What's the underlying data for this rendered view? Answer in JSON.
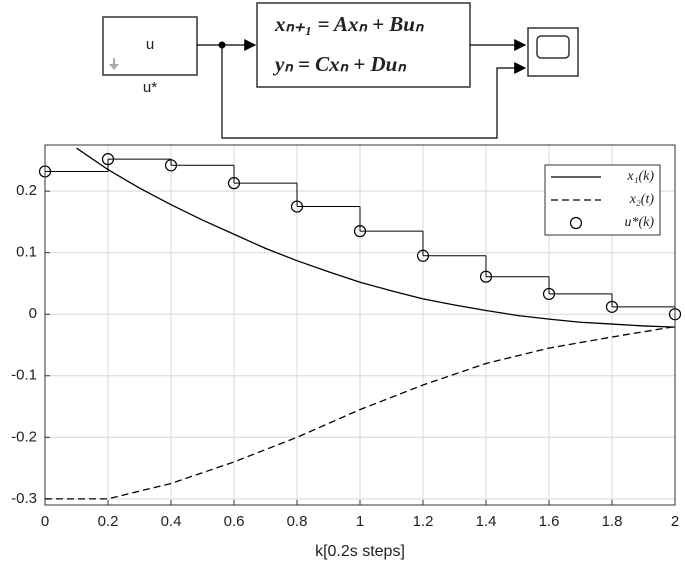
{
  "diagram": {
    "source_block": "u",
    "source_label": "u*",
    "equation_1": "xₙ₊₁ = Axₙ + Buₙ",
    "equation_2": "yₙ = Cxₙ + Duₙ"
  },
  "chart_data": {
    "type": "line",
    "xlabel": "k[0.2s steps]",
    "xlim": [
      0,
      2
    ],
    "ylim": [
      -0.31,
      0.275
    ],
    "xticks": [
      0,
      0.2,
      0.4,
      0.6,
      0.8,
      1,
      1.2,
      1.4,
      1.6,
      1.8,
      2
    ],
    "yticks": [
      -0.3,
      -0.2,
      -0.1,
      0,
      0.1,
      0.2
    ],
    "grid": true,
    "legend": "upper right",
    "series": [
      {
        "name": "x₁(k)",
        "color": "#000000",
        "style": "solid",
        "x": [
          0.1,
          0.2,
          0.3,
          0.4,
          0.5,
          0.6,
          0.7,
          0.8,
          0.9,
          1,
          1.1,
          1.2,
          1.3,
          1.4,
          1.5,
          1.6,
          1.7,
          1.8,
          1.9,
          2
        ],
        "values": [
          0.27,
          0.235,
          0.205,
          0.178,
          0.153,
          0.13,
          0.107,
          0.087,
          0.069,
          0.052,
          0.038,
          0.025,
          0.015,
          0.006,
          -0.002,
          -0.008,
          -0.013,
          -0.016,
          -0.019,
          -0.021
        ]
      },
      {
        "name": "x₂(t)",
        "color": "#000000",
        "style": "dashed",
        "x": [
          0,
          0.2,
          0.4,
          0.6,
          0.8,
          1,
          1.2,
          1.4,
          1.6,
          1.8,
          2
        ],
        "values": [
          -0.3,
          -0.3,
          -0.275,
          -0.24,
          -0.2,
          -0.155,
          -0.115,
          -0.08,
          -0.055,
          -0.037,
          -0.02
        ]
      },
      {
        "name": "u*(k)",
        "color": "#000000",
        "style": "stairs-markers",
        "x": [
          0,
          0.2,
          0.4,
          0.6,
          0.8,
          1,
          1.2,
          1.4,
          1.6,
          1.8,
          2
        ],
        "values": [
          0.232,
          0.252,
          0.242,
          0.213,
          0.175,
          0.135,
          0.095,
          0.061,
          0.033,
          0.012,
          0
        ]
      }
    ]
  }
}
